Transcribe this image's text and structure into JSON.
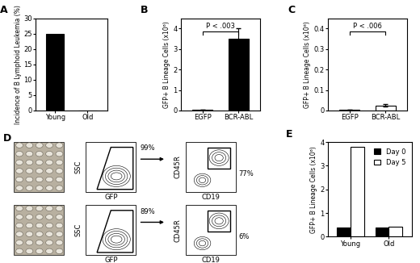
{
  "chart_data": [
    {
      "type": "bar",
      "title": "A",
      "categories": [
        "Young",
        "Old"
      ],
      "values": [
        25,
        0
      ],
      "color": "#000000",
      "y_label": "Incidence of B Lymphoid Leukemia (%)",
      "ylim": [
        0,
        30
      ],
      "yticks": [
        0,
        5,
        10,
        15,
        20,
        25,
        30
      ]
    },
    {
      "type": "bar",
      "title": "B",
      "categories": [
        "EGFP",
        "BCR-ABL"
      ],
      "values": [
        0.03,
        3.5
      ],
      "errors": [
        0,
        0.5
      ],
      "color": "#000000",
      "y_label": "GFP+ B Lineage Cells (x10⁶)",
      "ylim": [
        0,
        4.5
      ],
      "yticks": [
        0,
        1,
        2,
        3,
        4
      ],
      "annotations": [
        "P < .003"
      ]
    },
    {
      "type": "bar",
      "title": "C",
      "categories": [
        "EGFP",
        "BCR-ABL"
      ],
      "values": [
        0.005,
        0.025
      ],
      "errors": [
        0,
        0.005
      ],
      "color": "#ffffff",
      "y_label": "GFP+ B Lineage Cells (x10⁶)",
      "ylim": [
        0,
        0.45
      ],
      "yticks": [
        0,
        0.1,
        0.2,
        0.3,
        0.4
      ],
      "annotations": [
        "P < .006"
      ]
    },
    {
      "type": "grouped_bar",
      "title": "E",
      "categories": [
        "Young",
        "Old"
      ],
      "series": [
        {
          "name": "Day 0",
          "color": "#000000",
          "values": [
            0.4,
            0.4
          ]
        },
        {
          "name": "Day 5",
          "color": "#ffffff",
          "values": [
            3.8,
            0.42
          ]
        }
      ],
      "y_label": "GFP+ B Lineage Cells (x10⁶)",
      "ylim": [
        0,
        4
      ],
      "yticks": [
        0,
        1,
        2,
        3,
        4
      ],
      "legend": "upper right"
    }
  ],
  "panel_d": {
    "label": "D",
    "plot1": {
      "x_label": "GFP",
      "y_label": "SSC"
    },
    "plot2": {
      "x_label": "CD19",
      "y_label": "CD45R"
    },
    "rows": [
      {
        "gate1": "99%",
        "gate2": "77%"
      },
      {
        "gate1": "89%",
        "gate2": "6%"
      }
    ]
  }
}
